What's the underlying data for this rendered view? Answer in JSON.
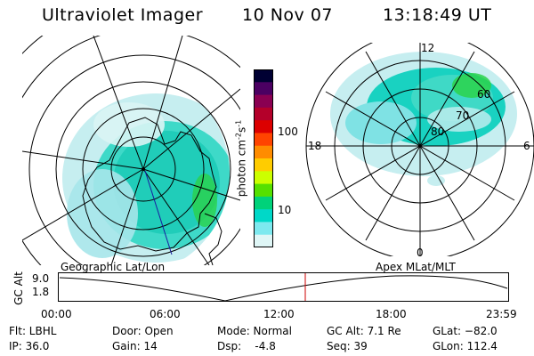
{
  "header": {
    "instrument": "Ultraviolet Imager",
    "date": "10 Nov 07",
    "time": "13:18:49 UT"
  },
  "colorbar": {
    "label_main": "photon cm",
    "label_exp1": "-2",
    "label_mid": "s",
    "label_exp2": "-1",
    "tick_100": "100",
    "tick_10": "10",
    "scale": "log",
    "colors": [
      "#000033",
      "#4b0062",
      "#8a0052",
      "#b4002a",
      "#dc0000",
      "#ff4400",
      "#ff8c00",
      "#ffcc00",
      "#ccff00",
      "#55e000",
      "#00d27a",
      "#00d8c8",
      "#7de9ef",
      "#dff6f6"
    ]
  },
  "polar_plot": {
    "lat_labels": [
      "60",
      "70",
      "80"
    ],
    "mlt_labels": {
      "top": "12",
      "left": "18",
      "right": "6",
      "bottom": "0"
    }
  },
  "timeline": {
    "axis_title": "GC Alt",
    "y_max": "9.0",
    "y_min": "1.8",
    "left_caption": "Geographic Lat/Lon",
    "right_caption": "Apex MLat/MLT",
    "ticks": [
      "00:00",
      "06:00",
      "12:00",
      "18:00",
      "23:59"
    ]
  },
  "footer": {
    "flt": "Flt: LBHL",
    "ip": "IP: 36.0",
    "door": "Door: Open",
    "gain": "Gain: 14",
    "mode": "Mode: Normal",
    "dsp": "Dsp:    -4.8",
    "gc_alt": "GC Alt: 7.1 Re",
    "seq": "Seq: 39",
    "glat": "GLat: −82.0",
    "glon": "GLon: 112.4"
  },
  "accent_colors": {
    "current_time_marker": "#cc0000",
    "track": "#1a1aa0"
  }
}
